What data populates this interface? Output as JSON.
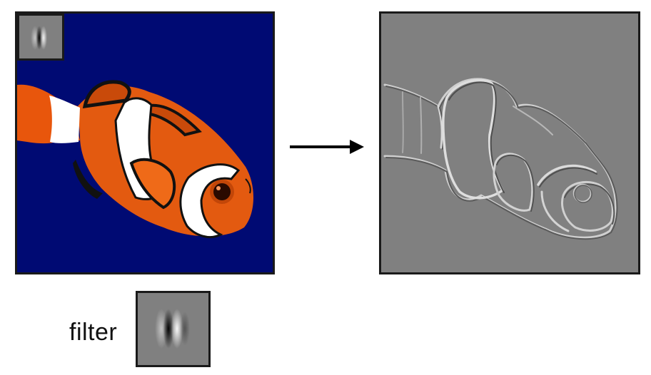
{
  "filter_label": "filter",
  "colors": {
    "input_background": "#000a73",
    "output_background": "#808080",
    "fish_orange": "#e8560c",
    "fish_white": "#ffffff",
    "fish_black": "#111111",
    "frame": "#1a1a1a"
  },
  "icons": {
    "arrow": "right-arrow-icon",
    "filter_thumbnail": "gabor-filter-icon",
    "filter_large": "gabor-filter-icon"
  }
}
